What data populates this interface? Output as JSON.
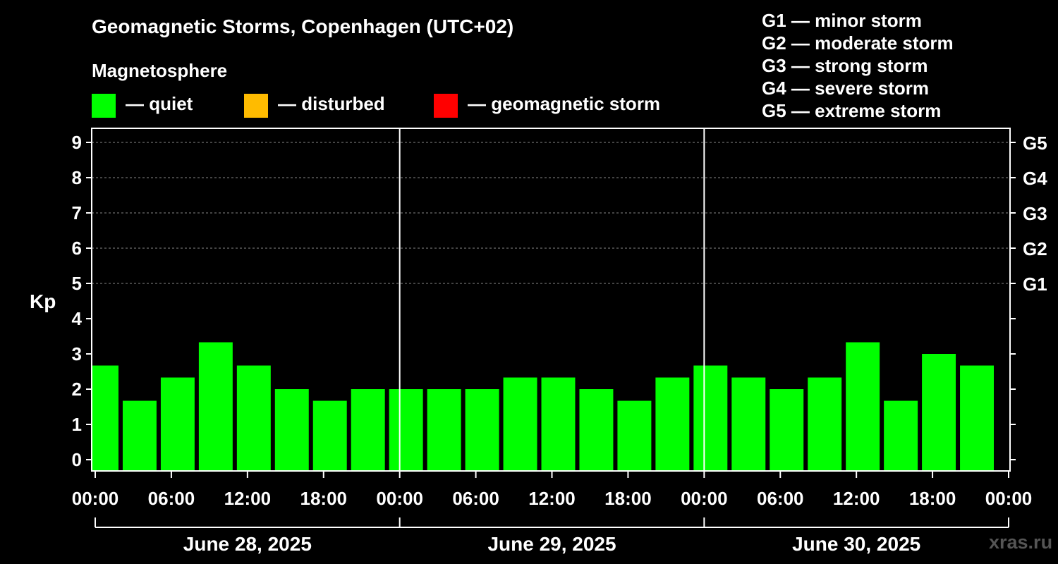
{
  "header": {
    "title": "Geomagnetic Storms, Copenhagen (UTC+02)",
    "subtitle": "Magnetosphere"
  },
  "legend": [
    {
      "label": "— quiet",
      "color": "#00ff00"
    },
    {
      "label": "— disturbed",
      "color": "#ffbb00"
    },
    {
      "label": "— geomagnetic storm",
      "color": "#ff0000"
    }
  ],
  "g_levels": [
    "G1 — minor storm",
    "G2 — moderate storm",
    "G3 — strong storm",
    "G4 — severe storm",
    "G5 — extreme storm"
  ],
  "watermark": "xras.ru",
  "chart_data": {
    "type": "bar",
    "ylabel": "Kp",
    "ylim": [
      0,
      9
    ],
    "yticks": [
      "0",
      "1",
      "2",
      "3",
      "4",
      "5",
      "6",
      "7",
      "8",
      "9"
    ],
    "right_axis_labels": [
      {
        "kp": 5,
        "label": "G1"
      },
      {
        "kp": 6,
        "label": "G2"
      },
      {
        "kp": 7,
        "label": "G3"
      },
      {
        "kp": 8,
        "label": "G4"
      },
      {
        "kp": 9,
        "label": "G5"
      }
    ],
    "xticks": [
      "00:00",
      "06:00",
      "12:00",
      "18:00",
      "00:00",
      "06:00",
      "12:00",
      "18:00",
      "00:00",
      "06:00",
      "12:00",
      "18:00",
      "00:00"
    ],
    "days": [
      "June 28, 2025",
      "June 29, 2025",
      "June 30, 2025"
    ],
    "grid": "horizontal dashed at Kp 5-9",
    "bar_color": "#00ff00",
    "interval_hours": 3,
    "first_bar_start_hour": -1,
    "values": [
      2.67,
      1.67,
      2.33,
      3.33,
      2.67,
      2.0,
      1.67,
      2.0,
      2.0,
      2.0,
      2.0,
      2.33,
      2.33,
      2.0,
      1.67,
      2.33,
      2.67,
      2.33,
      2.0,
      2.33,
      3.33,
      1.67,
      3.0,
      2.67
    ]
  }
}
